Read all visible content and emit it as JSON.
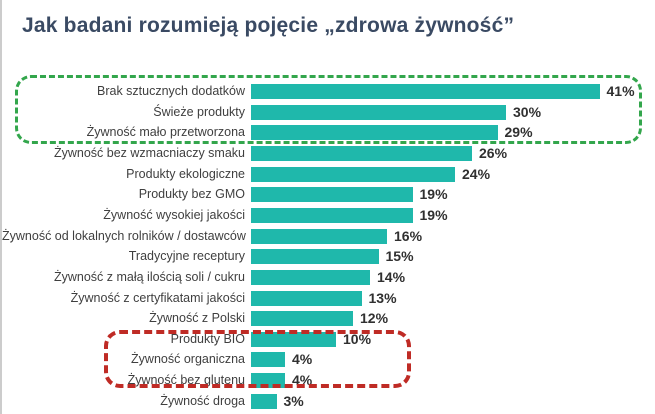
{
  "page": {
    "title": "Jak badani rozumieją pojęcie „zdrowa żywność”"
  },
  "chart_data": {
    "type": "bar",
    "orientation": "horizontal",
    "title": "Jak badani rozumieją pojęcie „zdrowa żywność”",
    "xlabel": "",
    "ylabel": "",
    "xlim": [
      0,
      45
    ],
    "grid": false,
    "value_suffix": "%",
    "categories": [
      "Brak sztucznych dodatków",
      "Świeże produkty",
      "Żywność mało przetworzona",
      "Żywność bez wzmacniaczy smaku",
      "Produkty ekologiczne",
      "Produkty bez GMO",
      "Żywność wysokiej jakości",
      "Żywność od lokalnych rolników / dostawców",
      "Tradycyjne receptury",
      "Żywność z małą ilością soli / cukru",
      "Żywność z certyfikatami jakości",
      "Żywność z Polski",
      "Produkty BIO",
      "Żywność organiczna",
      "Żywność bez glutenu",
      "Żywność droga"
    ],
    "values": [
      41,
      30,
      29,
      26,
      24,
      19,
      19,
      16,
      15,
      14,
      13,
      12,
      10,
      4,
      4,
      3
    ],
    "annotations": [
      {
        "name": "green-highlight",
        "style": "dashed-rounded-box",
        "color": "#33a64c",
        "rows": [
          "Brak sztucznych dodatków",
          "Świeże produkty",
          "Żywność mało przetworzona"
        ]
      },
      {
        "name": "red-highlight",
        "style": "dashed-rounded-box",
        "color": "#bf2b25",
        "rows": [
          "Produkty BIO",
          "Żywność organiczna",
          "Żywność bez glutenu"
        ]
      }
    ]
  },
  "colors": {
    "bar": "#1fb8ab",
    "title_text": "#3a4a63",
    "category_text": "#3f3f3f",
    "value_text": "#303030",
    "green_box": "#33a64c",
    "red_box": "#bf2b25",
    "left_edge_line": "#cccccc",
    "background": "#ffffff"
  }
}
